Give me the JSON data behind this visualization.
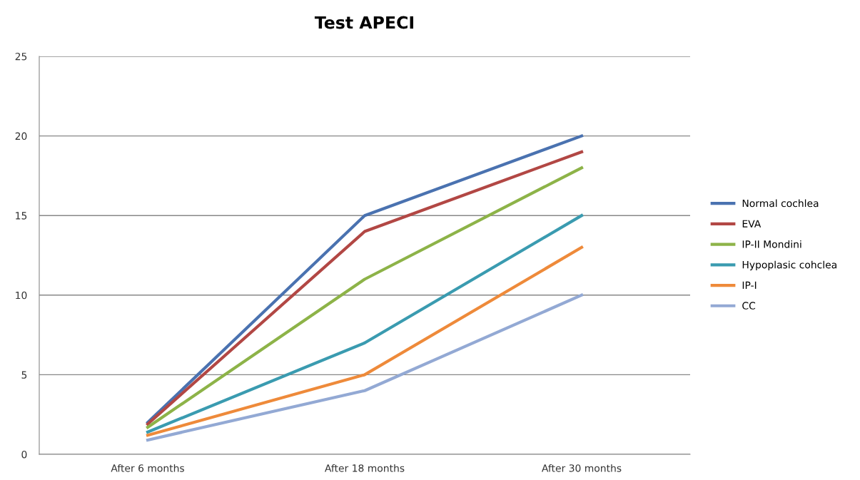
{
  "chart_data": {
    "type": "line",
    "title": "Test APECI",
    "categories": [
      "After 6 months",
      "After 18 months",
      "After 30 months"
    ],
    "series": [
      {
        "name": "Normal cochlea",
        "color": "#4a72b0",
        "values": [
          2,
          15,
          20
        ]
      },
      {
        "name": "EVA",
        "color": "#b24744",
        "values": [
          1.9,
          14,
          19
        ]
      },
      {
        "name": "IP-II Mondini",
        "color": "#8db348",
        "values": [
          1.7,
          11,
          18
        ]
      },
      {
        "name": "Hypoplasic cohclea",
        "color": "#3a9bb0",
        "values": [
          1.4,
          7,
          15
        ]
      },
      {
        "name": "IP-I",
        "color": "#ee8a3a",
        "values": [
          1.2,
          5,
          13
        ]
      },
      {
        "name": "CC",
        "color": "#93a9d4",
        "values": [
          0.9,
          4,
          10
        ]
      }
    ],
    "ylim": [
      0,
      25
    ],
    "yticks": [
      0,
      5,
      10,
      15,
      20,
      25
    ],
    "grid": "y",
    "legend": "right",
    "marker": "none",
    "line_style": "solid"
  }
}
